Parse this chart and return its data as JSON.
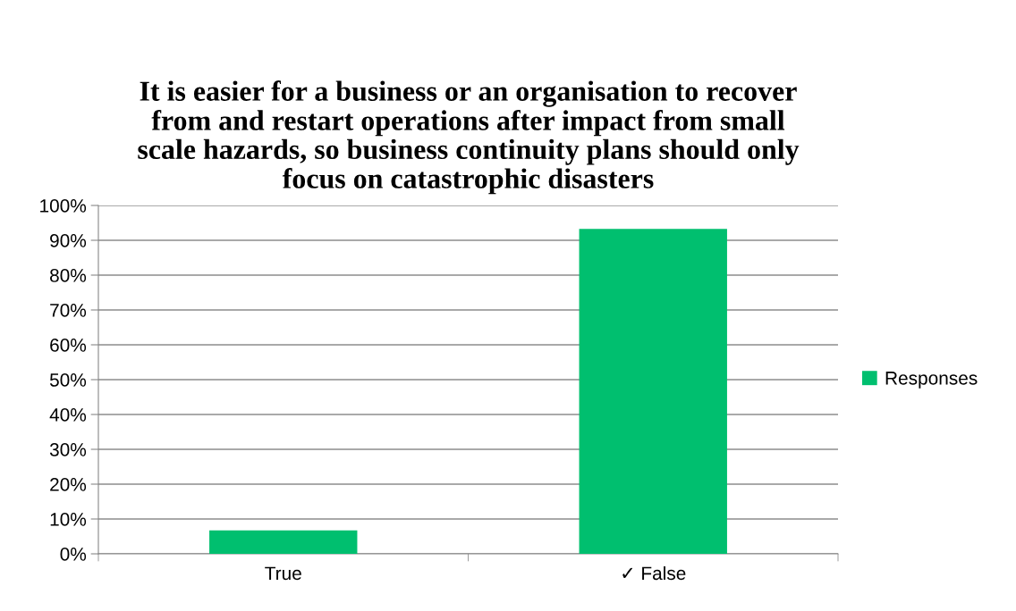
{
  "chart_data": {
    "type": "bar",
    "title": "It is easier for a business or an organisation to recover\nfrom and restart operations after impact from small\nscale hazards, so business continuity plans should only\nfocus on catastrophic disasters",
    "categories": [
      "True",
      "✓ False"
    ],
    "series": [
      {
        "name": "Responses",
        "color": "#00bf6f",
        "values": [
          6.7,
          93.3
        ]
      }
    ],
    "ylim": [
      0,
      100
    ],
    "yticks": [
      {
        "value": 0,
        "label": "0%"
      },
      {
        "value": 10,
        "label": "10%"
      },
      {
        "value": 20,
        "label": "20%"
      },
      {
        "value": 30,
        "label": "30%"
      },
      {
        "value": 40,
        "label": "40%"
      },
      {
        "value": 50,
        "label": "50%"
      },
      {
        "value": 60,
        "label": "60%"
      },
      {
        "value": 70,
        "label": "70%"
      },
      {
        "value": 80,
        "label": "80%"
      },
      {
        "value": 90,
        "label": "90%"
      },
      {
        "value": 100,
        "label": "100%"
      }
    ],
    "grid": "y",
    "legend": "right"
  }
}
